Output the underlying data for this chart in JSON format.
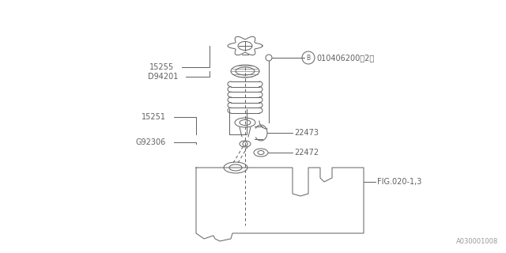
{
  "bg_color": "#ffffff",
  "line_color": "#606060",
  "text_color": "#606060",
  "fig_width": 6.4,
  "fig_height": 3.2,
  "dpi": 100,
  "watermark": "A030001008",
  "label_15255": "15255",
  "label_D94201": "D94201",
  "label_B": "B",
  "label_B_num": "010406200（2）",
  "label_15251": "15251",
  "label_G92306": "G92306",
  "label_22473": "22473",
  "label_22472": "22472",
  "label_FIG": "FIG.020-1,3"
}
